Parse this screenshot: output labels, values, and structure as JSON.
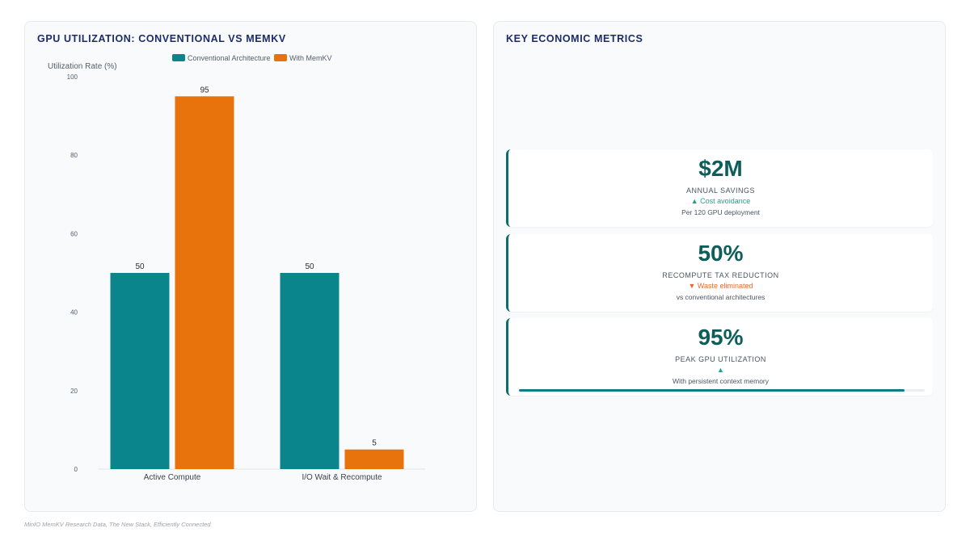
{
  "left_panel": {
    "title": "GPU UTILIZATION: CONVENTIONAL VS MEMKV"
  },
  "chart_data": {
    "type": "bar",
    "title": "GPU UTILIZATION: CONVENTIONAL VS MEMKV",
    "ylabel": "Utilization Rate (%)",
    "xlabel": "",
    "categories": [
      "Active Compute",
      "I/O Wait & Recompute"
    ],
    "series": [
      {
        "name": "Conventional Architecture",
        "color": "#0a858b",
        "values": [
          50,
          50
        ]
      },
      {
        "name": "With MemKV",
        "color": "#e8720c",
        "values": [
          95,
          5
        ]
      }
    ],
    "ylim": [
      0,
      100
    ],
    "yticks": [
      0,
      20,
      40,
      60,
      80,
      100
    ],
    "legend": "top-center",
    "grid": false,
    "data_labels": true
  },
  "right_panel": {
    "title": "KEY ECONOMIC METRICS",
    "metrics": [
      {
        "value": "$2M",
        "label": "ANNUAL SAVINGS",
        "trend": "▲ Cost avoidance",
        "trend_dir": "up",
        "sub": "Per 120 GPU deployment"
      },
      {
        "value": "50%",
        "label": "RECOMPUTE TAX REDUCTION",
        "trend": "▼ Waste eliminated",
        "trend_dir": "down",
        "sub": "vs conventional architectures"
      },
      {
        "value": "95%",
        "label": "PEAK GPU UTILIZATION",
        "trend": "▲",
        "trend_dir": "up",
        "sub": "With persistent context memory",
        "progress": 0.95
      }
    ]
  },
  "footnote": "MinIO MemKV Research Data, The New Stack, Efficiently Connected"
}
